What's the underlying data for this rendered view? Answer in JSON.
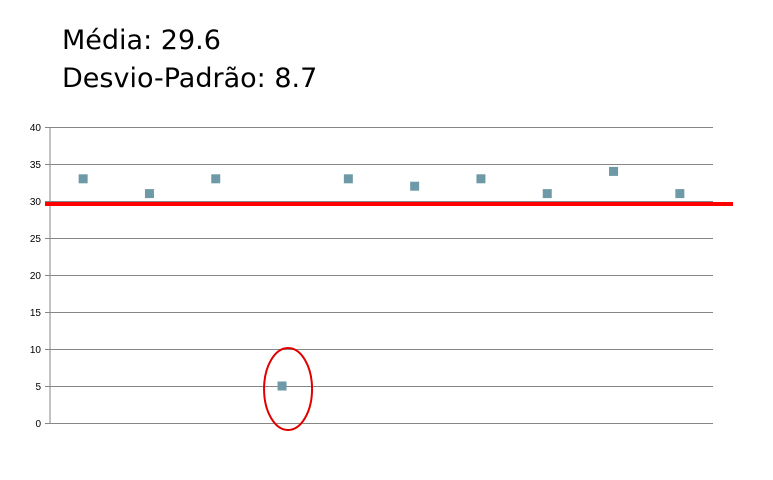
{
  "stats": {
    "mean_label": "Média:",
    "mean_value": "29.6",
    "std_label": "Desvio-Padrão:",
    "std_value": "8.7"
  },
  "chart_data": {
    "type": "scatter",
    "title": "",
    "xlabel": "",
    "ylabel": "",
    "x": [
      1,
      2,
      3,
      4,
      5,
      6,
      7,
      8,
      9,
      10
    ],
    "series": [
      {
        "values": [
          33,
          31,
          33,
          5,
          33,
          32,
          33,
          31,
          34,
          31
        ],
        "color": "#6e9aa8",
        "marker": "square"
      }
    ],
    "ylim": [
      0,
      40
    ],
    "yticks": [
      0,
      5,
      10,
      15,
      20,
      25,
      30,
      35,
      40
    ],
    "grid": true,
    "legend": "none",
    "reference_line": {
      "value": 29.6,
      "color": "#ff0000"
    },
    "highlight": {
      "index": 3,
      "shape": "ellipse",
      "color": "#e00000"
    }
  }
}
